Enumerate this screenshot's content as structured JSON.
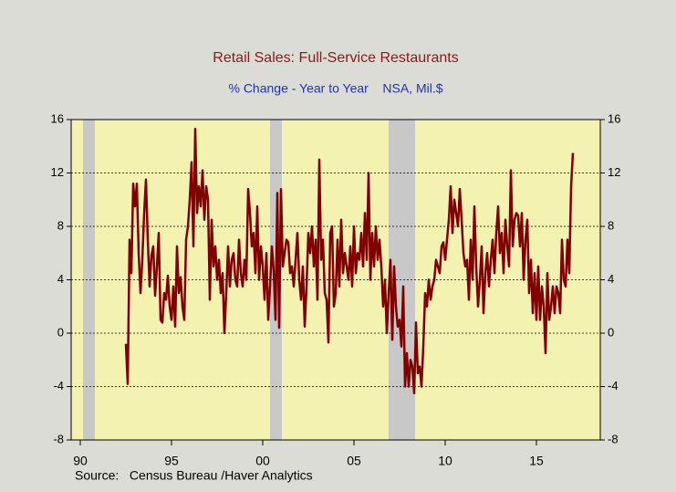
{
  "chart_data": {
    "type": "line",
    "title": "Retail Sales: Full-Service Restaurants",
    "subtitle": "% Change - Year to Year    NSA, Mil.$",
    "source": "Source:   Census Bureau /Haver Analytics",
    "xlim": [
      1990,
      2019
    ],
    "xticks": [
      {
        "value": 1990.5,
        "label": "90"
      },
      {
        "value": 1995.5,
        "label": "95"
      },
      {
        "value": 2000.5,
        "label": "00"
      },
      {
        "value": 2005.5,
        "label": "05"
      },
      {
        "value": 2010.5,
        "label": "10"
      },
      {
        "value": 2015.5,
        "label": "15"
      }
    ],
    "ylim": [
      -8,
      16
    ],
    "yticks": [
      -8,
      -4,
      0,
      4,
      8,
      12,
      16
    ],
    "grid": true,
    "recessions": [
      [
        1990.65,
        1991.3
      ],
      [
        2000.9,
        2001.55
      ],
      [
        2007.4,
        2008.85
      ]
    ],
    "recession_color": "#c8c8c8",
    "background": "#f4f2b0",
    "x": [
      1993.0,
      1993.1,
      1993.2,
      1993.3,
      1993.4,
      1993.5,
      1993.6,
      1993.7,
      1993.8,
      1993.9,
      1994.0,
      1994.1,
      1994.2,
      1994.3,
      1994.4,
      1994.5,
      1994.6,
      1994.7,
      1994.8,
      1994.9,
      1995.0,
      1995.1,
      1995.2,
      1995.3,
      1995.4,
      1995.5,
      1995.6,
      1995.7,
      1995.8,
      1995.9,
      1996.0,
      1996.1,
      1996.2,
      1996.3,
      1996.4,
      1996.5,
      1996.6,
      1996.7,
      1996.8,
      1996.9,
      1997.0,
      1997.1,
      1997.2,
      1997.3,
      1997.4,
      1997.5,
      1997.6,
      1997.7,
      1997.8,
      1997.9,
      1998.0,
      1998.1,
      1998.2,
      1998.3,
      1998.4,
      1998.5,
      1998.6,
      1998.7,
      1998.8,
      1998.9,
      1999.0,
      1999.1,
      1999.2,
      1999.3,
      1999.4,
      1999.5,
      1999.6,
      1999.7,
      1999.8,
      1999.9,
      2000.0,
      2000.1,
      2000.2,
      2000.3,
      2000.4,
      2000.5,
      2000.6,
      2000.7,
      2000.8,
      2000.9,
      2001.0,
      2001.1,
      2001.2,
      2001.3,
      2001.4,
      2001.5,
      2001.6,
      2001.7,
      2001.8,
      2001.9,
      2002.0,
      2002.1,
      2002.2,
      2002.3,
      2002.4,
      2002.5,
      2002.6,
      2002.7,
      2002.8,
      2002.9,
      2003.0,
      2003.1,
      2003.2,
      2003.3,
      2003.4,
      2003.5,
      2003.6,
      2003.7,
      2003.8,
      2003.9,
      2004.0,
      2004.1,
      2004.2,
      2004.3,
      2004.4,
      2004.5,
      2004.6,
      2004.7,
      2004.8,
      2004.9,
      2005.0,
      2005.1,
      2005.2,
      2005.3,
      2005.4,
      2005.5,
      2005.6,
      2005.7,
      2005.8,
      2005.9,
      2006.0,
      2006.1,
      2006.2,
      2006.3,
      2006.4,
      2006.5,
      2006.6,
      2006.7,
      2006.8,
      2006.9,
      2007.0,
      2007.1,
      2007.2,
      2007.3,
      2007.4,
      2007.5,
      2007.6,
      2007.7,
      2007.8,
      2007.9,
      2008.0,
      2008.1,
      2008.2,
      2008.3,
      2008.4,
      2008.5,
      2008.6,
      2008.7,
      2008.8,
      2008.9,
      2009.0,
      2009.1,
      2009.2,
      2009.3,
      2009.4,
      2009.5,
      2009.6,
      2009.7,
      2009.8,
      2009.9,
      2010.0,
      2010.1,
      2010.2,
      2010.3,
      2010.4,
      2010.5,
      2010.6,
      2010.7,
      2010.8,
      2010.9,
      2011.0,
      2011.1,
      2011.2,
      2011.3,
      2011.4,
      2011.5,
      2011.6,
      2011.7,
      2011.8,
      2011.9,
      2012.0,
      2012.1,
      2012.2,
      2012.3,
      2012.4,
      2012.5,
      2012.6,
      2012.7,
      2012.8,
      2012.9,
      2013.0,
      2013.1,
      2013.2,
      2013.3,
      2013.4,
      2013.5,
      2013.6,
      2013.7,
      2013.8,
      2013.9,
      2014.0,
      2014.1,
      2014.2,
      2014.3,
      2014.4,
      2014.5,
      2014.6,
      2014.7,
      2014.8,
      2014.9,
      2015.0,
      2015.1,
      2015.2,
      2015.3,
      2015.4,
      2015.5,
      2015.6,
      2015.7,
      2015.8,
      2015.9,
      2016.0,
      2016.1,
      2016.2,
      2016.3,
      2016.4,
      2016.5,
      2016.6,
      2016.7,
      2016.8,
      2016.9,
      2017.0,
      2017.1,
      2017.2,
      2017.3,
      2017.4,
      2017.5
    ],
    "series": [
      {
        "color": "#800000",
        "values": [
          -0.8,
          -3.8,
          7,
          4.5,
          11.2,
          9.5,
          11.2,
          6,
          3,
          5.5,
          9,
          11.5,
          7,
          3.5,
          5.8,
          6.5,
          2.8,
          5,
          7.5,
          1,
          0.8,
          3,
          2.5,
          4.3,
          2,
          1,
          3.5,
          0.5,
          6.5,
          3,
          4.2,
          2,
          1,
          7,
          8,
          10,
          12.8,
          6.5,
          15.3,
          9,
          11,
          9.5,
          12.2,
          8.5,
          11,
          10,
          2.5,
          8.5,
          5,
          6.5,
          4,
          5.5,
          3,
          4.5,
          0,
          3,
          6.5,
          3.5,
          5.5,
          6,
          4,
          3.5,
          7,
          4.5,
          3.5,
          5.5,
          4,
          10.8,
          9,
          6.5,
          7.5,
          4.5,
          9.5,
          4,
          6.5,
          5,
          2.5,
          6,
          1,
          3.5,
          6.5,
          4.7,
          1,
          10.5,
          0.4,
          10.8,
          5,
          6,
          7,
          6.8,
          4.5,
          5,
          3.5,
          5.5,
          7.5,
          4,
          2.5,
          5,
          0.5,
          3.5,
          7.5,
          6,
          8,
          5,
          7,
          2.5,
          13,
          5.5,
          7,
          3,
          2.5,
          -0.7,
          7.5,
          8,
          2,
          3,
          7,
          3.5,
          8.5,
          4.5,
          6,
          5,
          4,
          6.5,
          3.5,
          8,
          4.5,
          6,
          5.5,
          7.5,
          5,
          9,
          5.5,
          12,
          4,
          7.5,
          5,
          8,
          5.5,
          7,
          5,
          2,
          4,
          0,
          3,
          5.5,
          -0.5,
          5,
          2,
          0.5,
          1,
          -1,
          3.5,
          -4,
          -1.5,
          -4,
          -2,
          -2.5,
          -4.5,
          0.8,
          -3,
          -2.5,
          -4,
          -1,
          3,
          2,
          4,
          2.5,
          3.5,
          4,
          5.5,
          5,
          4.5,
          6.5,
          6.8,
          5.5,
          7,
          8.5,
          11,
          7.5,
          10,
          9,
          8,
          10.8,
          8.5,
          6,
          5,
          5.5,
          2.5,
          7,
          4,
          9.5,
          5,
          2,
          4,
          6.5,
          1.5,
          4.5,
          6,
          3.5,
          5.5,
          7,
          4.5,
          7.5,
          9.5,
          6,
          7.5,
          4.5,
          8.5,
          6.5,
          5,
          12.2,
          6.5,
          8.5,
          9,
          8.8,
          6.5,
          9,
          4,
          7,
          8.5,
          3,
          5.5,
          1.5,
          4.5,
          1,
          5,
          1,
          3.5,
          2,
          -1.5,
          4.5,
          1,
          2,
          3.5,
          1.5,
          3.5,
          3,
          1.5,
          7,
          4,
          3.5,
          7,
          4.5,
          11,
          13.5
        ]
      }
    ]
  }
}
